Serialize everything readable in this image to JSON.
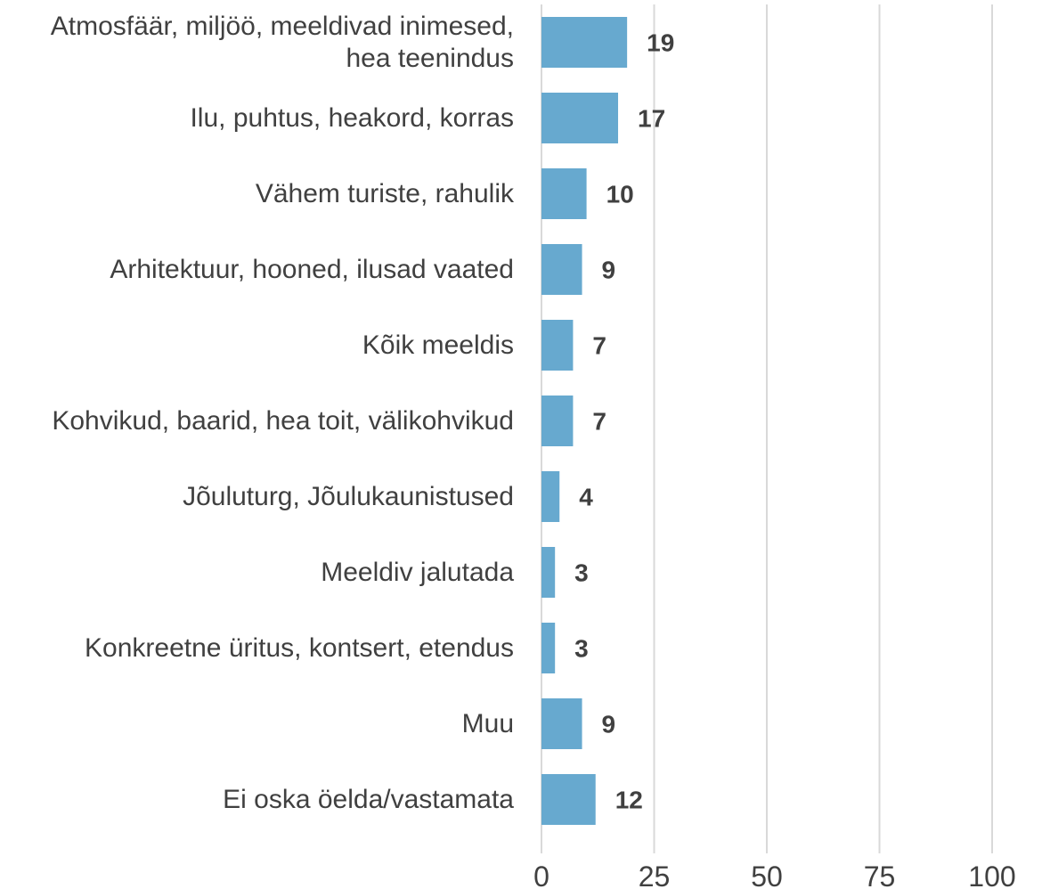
{
  "chart_data": {
    "type": "bar",
    "orientation": "horizontal",
    "categories": [
      "Atmosfäär, miljöö, meeldivad inimesed, hea teenindus",
      "Ilu, puhtus, heakord, korras",
      "Vähem turiste, rahulik",
      "Arhitektuur, hooned, ilusad vaated",
      "Kõik meeldis",
      "Kohvikud, baarid, hea toit, välikohvikud",
      "Jõuluturg, Jõulukaunistused",
      "Meeldiv jalutada",
      "Konkreetne üritus, kontsert, etendus",
      "Muu",
      "Ei oska öelda/vastamata"
    ],
    "values": [
      19,
      17,
      10,
      9,
      7,
      7,
      4,
      3,
      3,
      9,
      12
    ],
    "color": "#67a9cf",
    "xlim": [
      0,
      100
    ],
    "xticks": [
      0,
      25,
      50,
      75,
      100
    ],
    "grid": true
  }
}
